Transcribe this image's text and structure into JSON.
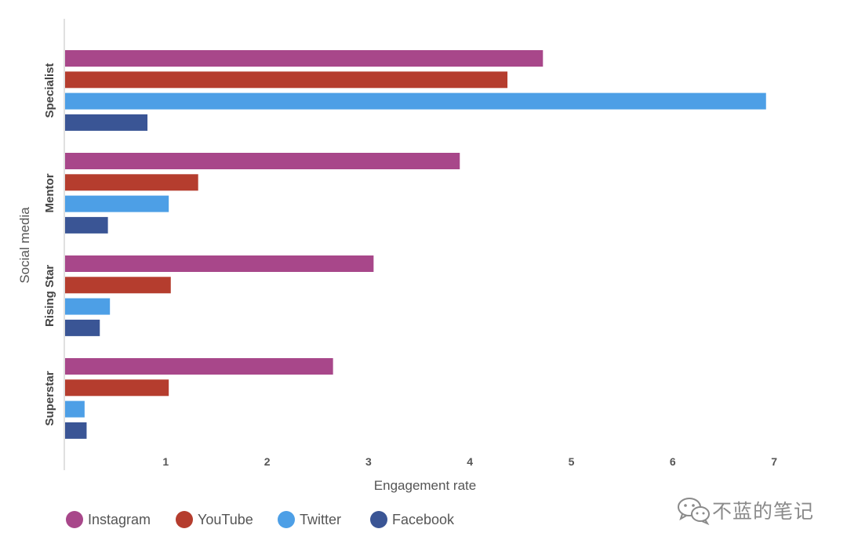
{
  "chart_data": {
    "type": "bar",
    "orientation": "horizontal",
    "categories": [
      "Specialist",
      "Mentor",
      "Rising Star",
      "Superstar"
    ],
    "series": [
      {
        "name": "Instagram",
        "color": "#a8478a",
        "values": [
          4.72,
          3.9,
          3.05,
          2.65
        ]
      },
      {
        "name": "YouTube",
        "color": "#b53d2e",
        "values": [
          4.37,
          1.32,
          1.05,
          1.03
        ]
      },
      {
        "name": "Twitter",
        "color": "#4d9fe6",
        "values": [
          6.92,
          1.03,
          0.45,
          0.2
        ]
      },
      {
        "name": "Facebook",
        "color": "#3a5595",
        "values": [
          0.82,
          0.43,
          0.35,
          0.22
        ]
      }
    ],
    "xlabel": "Engagement rate",
    "ylabel": "Social media",
    "xlim": [
      0,
      7.5
    ],
    "xticks": [
      "1",
      "2",
      "3",
      "4",
      "5",
      "6",
      "7"
    ],
    "grid": false,
    "legend_position": "bottom-left"
  },
  "legend": {
    "items": [
      {
        "label": "Instagram",
        "color": "#a8478a"
      },
      {
        "label": "YouTube",
        "color": "#b53d2e"
      },
      {
        "label": "Twitter",
        "color": "#4d9fe6"
      },
      {
        "label": "Facebook",
        "color": "#3a5595"
      }
    ]
  },
  "watermark": {
    "text": "不蓝的笔记",
    "icon": "wechat-icon"
  }
}
